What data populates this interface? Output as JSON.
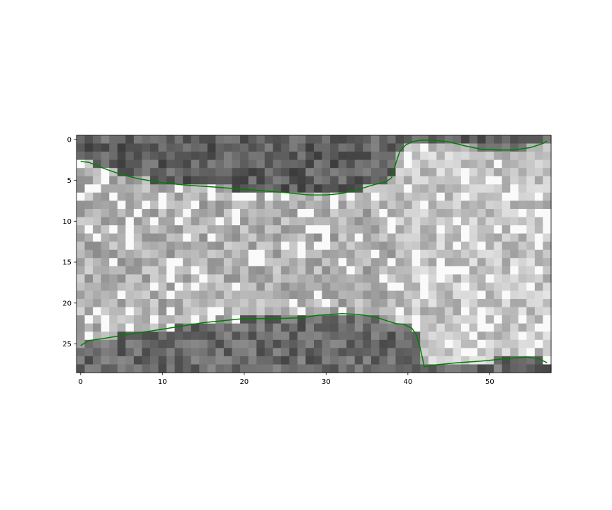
{
  "chart_data": {
    "type": "heatmap",
    "colormap": "gray",
    "title": "",
    "xlabel": "",
    "ylabel": "",
    "grid": false,
    "legend": "none",
    "image_shape": [
      29,
      58
    ],
    "xlim": [
      -0.5,
      57.5
    ],
    "ylim": [
      28.5,
      -0.5
    ],
    "x_ticks": [
      0,
      10,
      20,
      30,
      40,
      50
    ],
    "y_ticks": [
      0,
      5,
      10,
      15,
      20,
      25
    ],
    "line_color": "#007f00",
    "series": [
      {
        "type": "line",
        "x": [
          0,
          1,
          3,
          5,
          7,
          10,
          13,
          16,
          20,
          25,
          28,
          30,
          32,
          34,
          36,
          37.3,
          38,
          38.5,
          39,
          39.7,
          40.5,
          41.5,
          43,
          45,
          47,
          49,
          51,
          53,
          55,
          56.5,
          57
        ],
        "y": [
          2.7,
          2.8,
          3.6,
          4.3,
          4.8,
          5.3,
          5.6,
          5.8,
          6.1,
          6.5,
          6.8,
          6.8,
          6.6,
          6.1,
          5.5,
          5.2,
          4.7,
          3.0,
          1.5,
          0.7,
          0.3,
          0.1,
          0.1,
          0.3,
          0.8,
          1.2,
          1.3,
          1.3,
          1.0,
          0.5,
          0.2
        ]
      },
      {
        "type": "line",
        "x": [
          0,
          1,
          3,
          6,
          10,
          15,
          20,
          24,
          27,
          29,
          32,
          34,
          36,
          37.5,
          38.5,
          39.5,
          40.5,
          41,
          41.5,
          41.8,
          42,
          43,
          46,
          49,
          51,
          53,
          54.5,
          56,
          57
        ],
        "y": [
          25.2,
          24.6,
          24.3,
          23.8,
          23.2,
          22.4,
          21.9,
          21.9,
          21.8,
          21.5,
          21.3,
          21.4,
          21.7,
          22.2,
          22.5,
          22.6,
          23.1,
          23.8,
          25.5,
          26.8,
          27.8,
          27.6,
          27.3,
          27.1,
          26.9,
          26.7,
          26.6,
          26.8,
          27.3
        ]
      }
    ]
  }
}
